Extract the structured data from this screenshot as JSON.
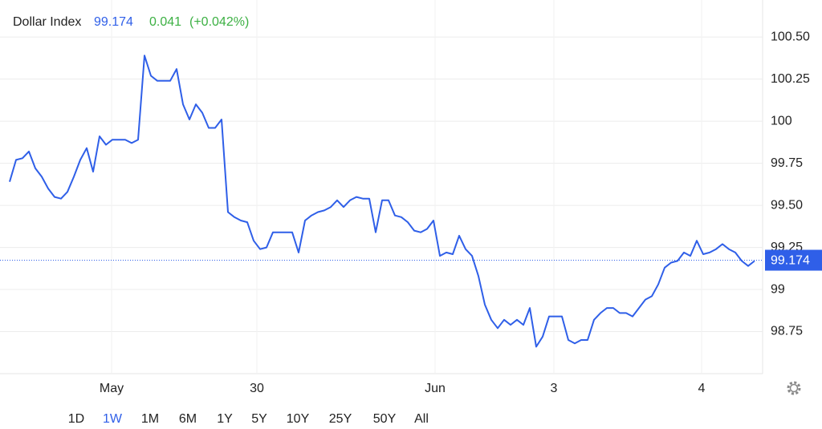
{
  "header": {
    "title": "Dollar Index",
    "price": "99.174",
    "change": "0.041",
    "change_pct": "(+0.042%)"
  },
  "chart_data": {
    "type": "line",
    "x": [
      0,
      1,
      2,
      3,
      4,
      5,
      6,
      7,
      8,
      9,
      10,
      11,
      12,
      13,
      14,
      15,
      16,
      17,
      18,
      19,
      20,
      21,
      22,
      23,
      24,
      25,
      26,
      27,
      28,
      29,
      30,
      31,
      32,
      33,
      34,
      35,
      36,
      37,
      38,
      39,
      40,
      41,
      42,
      43,
      44,
      45,
      46,
      47,
      48,
      49,
      50,
      51,
      52,
      53,
      54,
      55,
      56,
      57,
      58,
      59,
      60,
      61,
      62,
      63,
      64,
      65,
      66,
      67,
      68,
      69,
      70,
      71,
      72,
      73,
      74,
      75,
      76,
      77,
      78,
      79,
      80,
      81,
      82,
      83,
      84,
      85,
      86,
      87,
      88,
      89,
      90,
      91,
      92,
      93,
      94,
      95,
      96,
      97,
      98,
      99,
      100,
      101,
      102,
      103,
      104,
      105,
      106,
      107,
      108,
      109,
      110,
      111,
      112,
      113,
      114,
      115,
      116
    ],
    "series": [
      {
        "name": "Dollar Index",
        "color": "#2f5fe8",
        "values": [
          99.64,
          99.77,
          99.78,
          99.82,
          99.72,
          99.67,
          99.6,
          99.55,
          99.54,
          99.58,
          99.67,
          99.77,
          99.84,
          99.7,
          99.91,
          99.86,
          99.89,
          99.89,
          99.89,
          99.87,
          99.89,
          100.39,
          100.27,
          100.24,
          100.24,
          100.24,
          100.31,
          100.1,
          100.01,
          100.1,
          100.05,
          99.96,
          99.96,
          100.01,
          99.46,
          99.43,
          99.41,
          99.4,
          99.29,
          99.24,
          99.25,
          99.34,
          99.34,
          99.34,
          99.34,
          99.22,
          99.41,
          99.44,
          99.46,
          99.47,
          99.49,
          99.53,
          99.49,
          99.53,
          99.55,
          99.54,
          99.54,
          99.34,
          99.53,
          99.53,
          99.44,
          99.43,
          99.4,
          99.35,
          99.34,
          99.36,
          99.41,
          99.2,
          99.22,
          99.21,
          99.32,
          99.24,
          99.2,
          99.08,
          98.91,
          98.82,
          98.77,
          98.82,
          98.79,
          98.82,
          98.79,
          98.89,
          98.66,
          98.72,
          98.84,
          98.84,
          98.84,
          98.7,
          98.68,
          98.7,
          98.7,
          98.82,
          98.86,
          98.89,
          98.89,
          98.86,
          98.86,
          98.84,
          98.89,
          98.94,
          98.96,
          99.03,
          99.13,
          99.16,
          99.17,
          99.22,
          99.2,
          99.29,
          99.21,
          99.22,
          99.24,
          99.27,
          99.24,
          99.22,
          99.17,
          99.14,
          99.17
        ]
      }
    ],
    "last_value": 99.174,
    "xlim": [
      0,
      117.25
    ],
    "ylim": [
      98.5,
      100.72
    ],
    "xticks": [
      {
        "value": 15.875,
        "label": "May"
      },
      {
        "value": 38.5,
        "label": "30"
      },
      {
        "value": 66.25,
        "label": "Jun"
      },
      {
        "value": 84.75,
        "label": "3"
      },
      {
        "value": 107.75,
        "label": "4"
      }
    ],
    "yticks": [
      98.75,
      99,
      {
        "value": 99.25,
        "label": "99.25"
      },
      {
        "value": 99.5,
        "label": "99.50"
      },
      99.75,
      100,
      100.25,
      {
        "value": 100.5,
        "label": "100.50"
      }
    ],
    "grid": true
  },
  "ranges": {
    "items": [
      "1D",
      "1W",
      "1M",
      "6M",
      "1Y",
      "5Y",
      "10Y",
      "25Y",
      "50Y",
      "All"
    ],
    "active": "1W"
  }
}
